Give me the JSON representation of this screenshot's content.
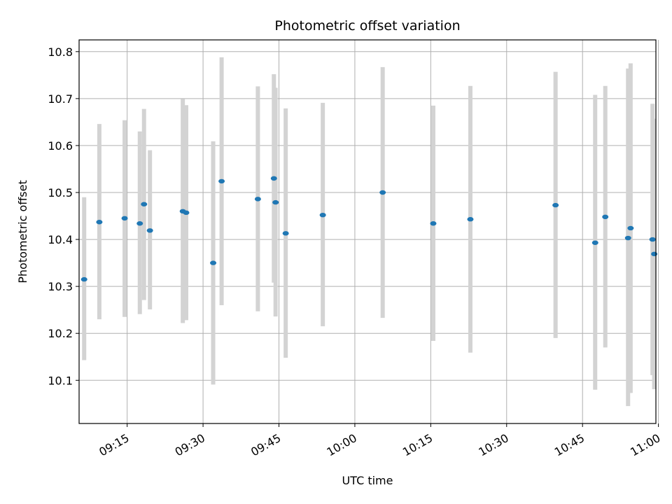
{
  "chart_data": {
    "type": "scatter",
    "title": "Photometric offset variation",
    "xlabel": "UTC time",
    "ylabel": "Photometric offset",
    "xlim": [
      "09:05:30",
      "10:59:30"
    ],
    "ylim": [
      10.008,
      10.825
    ],
    "x_ticks": [
      "09:15",
      "09:30",
      "09:45",
      "10:00",
      "10:15",
      "10:30",
      "10:45",
      "11:00"
    ],
    "y_ticks": [
      10.1,
      10.2,
      10.3,
      10.4,
      10.5,
      10.6,
      10.7,
      10.8
    ],
    "grid": true,
    "marker_color": "#1f77b4",
    "errorbar_color": "#d3d3d3",
    "points": [
      {
        "time": "09:06:30",
        "value": 10.315,
        "low": 10.143,
        "high": 10.49
      },
      {
        "time": "09:09:30",
        "value": 10.437,
        "low": 10.23,
        "high": 10.646
      },
      {
        "time": "09:14:30",
        "value": 10.445,
        "low": 10.235,
        "high": 10.654
      },
      {
        "time": "09:17:30",
        "value": 10.434,
        "low": 10.241,
        "high": 10.63
      },
      {
        "time": "09:18:20",
        "value": 10.475,
        "low": 10.271,
        "high": 10.678
      },
      {
        "time": "09:19:30",
        "value": 10.419,
        "low": 10.251,
        "high": 10.59
      },
      {
        "time": "09:26:00",
        "value": 10.46,
        "low": 10.222,
        "high": 10.699
      },
      {
        "time": "09:26:40",
        "value": 10.457,
        "low": 10.228,
        "high": 10.686
      },
      {
        "time": "09:32:00",
        "value": 10.35,
        "low": 10.091,
        "high": 10.609
      },
      {
        "time": "09:33:40",
        "value": 10.524,
        "low": 10.26,
        "high": 10.788
      },
      {
        "time": "09:40:50",
        "value": 10.486,
        "low": 10.247,
        "high": 10.726
      },
      {
        "time": "09:44:00",
        "value": 10.53,
        "low": 10.308,
        "high": 10.752
      },
      {
        "time": "09:44:20",
        "value": 10.479,
        "low": 10.236,
        "high": 10.723
      },
      {
        "time": "09:46:20",
        "value": 10.413,
        "low": 10.148,
        "high": 10.679
      },
      {
        "time": "09:53:40",
        "value": 10.452,
        "low": 10.215,
        "high": 10.691
      },
      {
        "time": "10:05:30",
        "value": 10.5,
        "low": 10.233,
        "high": 10.767
      },
      {
        "time": "10:15:30",
        "value": 10.434,
        "low": 10.184,
        "high": 10.685
      },
      {
        "time": "10:22:50",
        "value": 10.443,
        "low": 10.159,
        "high": 10.727
      },
      {
        "time": "10:39:40",
        "value": 10.473,
        "low": 10.19,
        "high": 10.757
      },
      {
        "time": "10:47:30",
        "value": 10.393,
        "low": 10.08,
        "high": 10.708
      },
      {
        "time": "10:49:30",
        "value": 10.448,
        "low": 10.17,
        "high": 10.727
      },
      {
        "time": "10:54:00",
        "value": 10.403,
        "low": 10.045,
        "high": 10.764
      },
      {
        "time": "10:54:30",
        "value": 10.424,
        "low": 10.073,
        "high": 10.775
      },
      {
        "time": "10:58:50",
        "value": 10.4,
        "low": 10.111,
        "high": 10.689
      },
      {
        "time": "10:59:10",
        "value": 10.369,
        "low": 10.081,
        "high": 10.657
      }
    ]
  }
}
